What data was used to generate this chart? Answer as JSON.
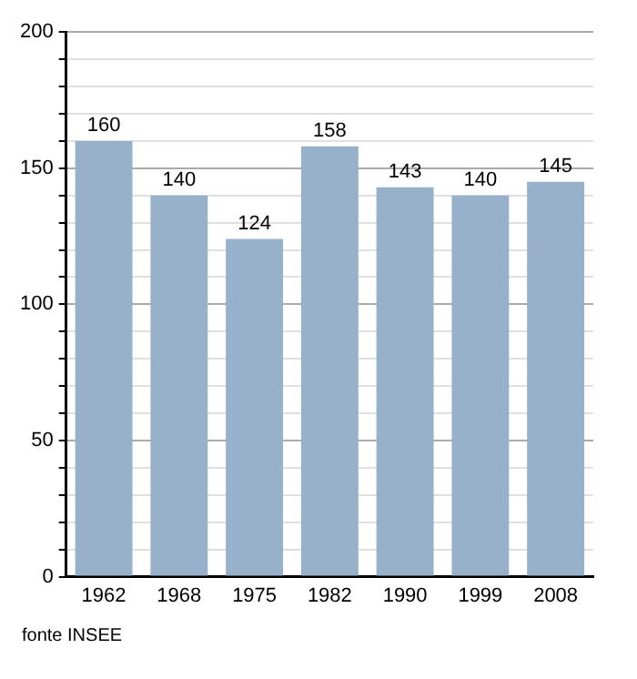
{
  "chart_data": {
    "type": "bar",
    "categories": [
      "1962",
      "1968",
      "1975",
      "1982",
      "1990",
      "1999",
      "2008"
    ],
    "values": [
      160,
      140,
      124,
      158,
      143,
      140,
      145
    ],
    "color": "#97b1cb",
    "data_labels": true,
    "grid": "y",
    "legend": false,
    "ylim": [
      0,
      200
    ],
    "yticks": [
      0,
      {
        "value": 10,
        "label": null
      },
      {
        "value": 20,
        "label": null
      },
      {
        "value": 30,
        "label": null
      },
      {
        "value": 40,
        "label": null
      },
      50,
      {
        "value": 60,
        "label": null
      },
      {
        "value": 70,
        "label": null
      },
      {
        "value": 80,
        "label": null
      },
      {
        "value": 90,
        "label": null
      },
      100,
      {
        "value": 110,
        "label": null
      },
      {
        "value": 120,
        "label": null
      },
      {
        "value": 130,
        "label": null
      },
      {
        "value": 140,
        "label": null
      },
      150,
      {
        "value": 160,
        "label": null
      },
      {
        "value": 170,
        "label": null
      },
      {
        "value": 180,
        "label": null
      },
      {
        "value": 190,
        "label": null
      },
      200
    ],
    "annotations": [
      "fonte INSEE"
    ]
  }
}
